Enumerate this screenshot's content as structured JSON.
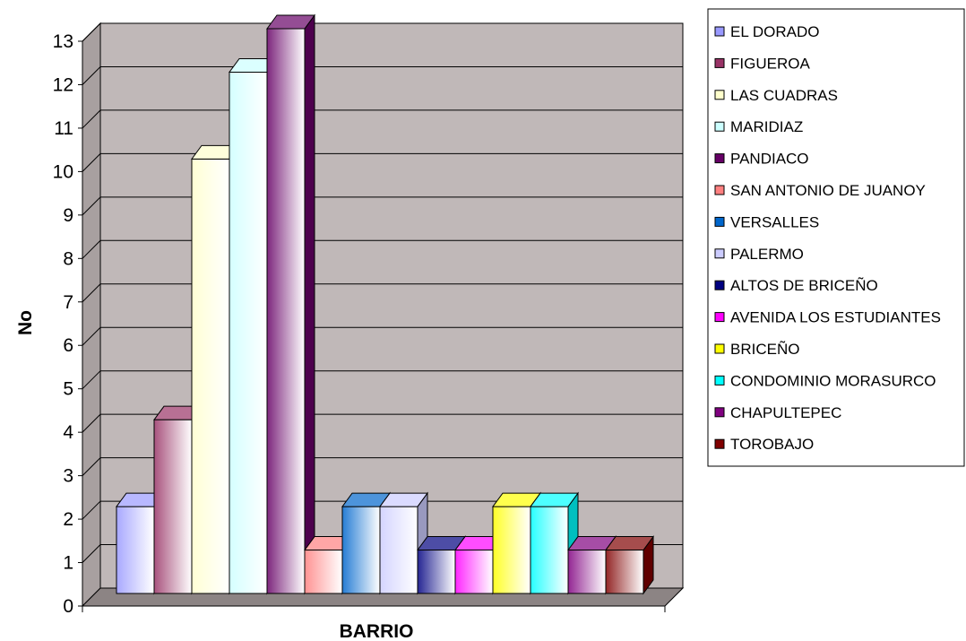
{
  "chart_data": {
    "type": "bar",
    "title": "",
    "xlabel": "BARRIO",
    "ylabel": "No",
    "ylim": [
      0,
      13
    ],
    "yticks": [
      0,
      1,
      2,
      3,
      4,
      5,
      6,
      7,
      8,
      9,
      10,
      11,
      12,
      13
    ],
    "grid": true,
    "legend_position": "right",
    "categories": [
      "EL DORADO",
      "FIGUEROA",
      "LAS CUADRAS",
      "MARIDIAZ",
      "PANDIACO",
      "SAN ANTONIO DE JUANOY",
      "VERSALLES",
      "PALERMO",
      "ALTOS DE BRICEÑO",
      "AVENIDA LOS ESTUDIANTES",
      "BRICEÑO",
      "CONDOMINIO MORASURCO",
      "CHAPULTEPEC",
      "TOROBAJO"
    ],
    "values": [
      2,
      4,
      10,
      12,
      13,
      1,
      2,
      2,
      1,
      1,
      2,
      2,
      1,
      1
    ],
    "colors": [
      "#9999ff",
      "#993366",
      "#ffffcc",
      "#ccffff",
      "#660066",
      "#ff8080",
      "#0066cc",
      "#ccccff",
      "#000080",
      "#ff00ff",
      "#ffff00",
      "#00ffff",
      "#800080",
      "#800000"
    ]
  }
}
